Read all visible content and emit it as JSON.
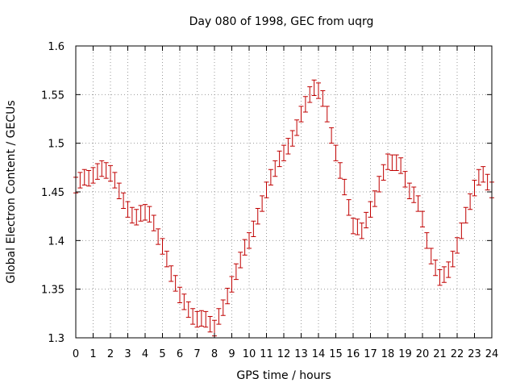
{
  "chart_data": {
    "type": "scatter",
    "title": "Day 080 of 1998, GEC from uqrg",
    "xlabel": "GPS time / hours",
    "ylabel": "Global Electron Content / GECUs",
    "xlim": [
      0,
      24
    ],
    "ylim": [
      1.3,
      1.6
    ],
    "x_ticks": [
      0,
      1,
      2,
      3,
      4,
      5,
      6,
      7,
      8,
      9,
      10,
      11,
      12,
      13,
      14,
      15,
      16,
      17,
      18,
      19,
      20,
      21,
      22,
      23,
      24
    ],
    "x_tick_labels": [
      "0",
      "1",
      "2",
      "3",
      "4",
      "5",
      "6",
      "7",
      "8",
      "9",
      "10",
      "11",
      "12",
      "13",
      "14",
      "15",
      "16",
      "17",
      "18",
      "19",
      "20",
      "21",
      "22",
      "23",
      "24"
    ],
    "y_ticks": [
      1.3,
      1.35,
      1.4,
      1.45,
      1.5,
      1.55,
      1.6
    ],
    "y_tick_labels": [
      "1.3",
      "1.35",
      "1.4",
      "1.45",
      "1.5",
      "1.55",
      "1.6"
    ],
    "grid": true,
    "legend": "none",
    "series": [
      {
        "color": "#c00000",
        "error": 0.008,
        "x": [
          0,
          0.25,
          0.5,
          0.75,
          1,
          1.25,
          1.5,
          1.75,
          2,
          2.25,
          2.5,
          2.75,
          3,
          3.25,
          3.5,
          3.75,
          4,
          4.25,
          4.5,
          4.75,
          5,
          5.25,
          5.5,
          5.75,
          6,
          6.25,
          6.5,
          6.75,
          7,
          7.25,
          7.5,
          7.75,
          8,
          8.25,
          8.5,
          8.75,
          9,
          9.25,
          9.5,
          9.75,
          10,
          10.25,
          10.5,
          10.75,
          11,
          11.25,
          11.5,
          11.75,
          12,
          12.25,
          12.5,
          12.75,
          13,
          13.25,
          13.5,
          13.75,
          14,
          14.25,
          14.5,
          14.75,
          15,
          15.25,
          15.5,
          15.75,
          16,
          16.25,
          16.5,
          16.75,
          17,
          17.25,
          17.5,
          17.75,
          18,
          18.25,
          18.5,
          18.75,
          19,
          19.25,
          19.5,
          19.75,
          20,
          20.25,
          20.5,
          20.75,
          21,
          21.25,
          21.5,
          21.75,
          22,
          22.25,
          22.5,
          22.75,
          23,
          23.25,
          23.5,
          23.75,
          24
        ],
        "y": [
          1.457,
          1.462,
          1.465,
          1.464,
          1.467,
          1.471,
          1.474,
          1.472,
          1.469,
          1.462,
          1.451,
          1.441,
          1.432,
          1.426,
          1.424,
          1.428,
          1.429,
          1.427,
          1.418,
          1.404,
          1.394,
          1.381,
          1.366,
          1.356,
          1.344,
          1.337,
          1.329,
          1.322,
          1.319,
          1.32,
          1.319,
          1.314,
          1.31,
          1.322,
          1.331,
          1.343,
          1.355,
          1.368,
          1.38,
          1.393,
          1.4,
          1.412,
          1.425,
          1.438,
          1.452,
          1.465,
          1.474,
          1.484,
          1.49,
          1.497,
          1.505,
          1.516,
          1.53,
          1.54,
          1.55,
          1.557,
          1.554,
          1.546,
          1.53,
          1.508,
          1.49,
          1.472,
          1.455,
          1.434,
          1.415,
          1.414,
          1.41,
          1.421,
          1.432,
          1.443,
          1.458,
          1.47,
          1.481,
          1.48,
          1.48,
          1.477,
          1.463,
          1.451,
          1.447,
          1.438,
          1.422,
          1.4,
          1.384,
          1.372,
          1.362,
          1.365,
          1.37,
          1.381,
          1.395,
          1.41,
          1.426,
          1.44,
          1.454,
          1.465,
          1.468,
          1.46,
          1.452
        ]
      }
    ]
  }
}
